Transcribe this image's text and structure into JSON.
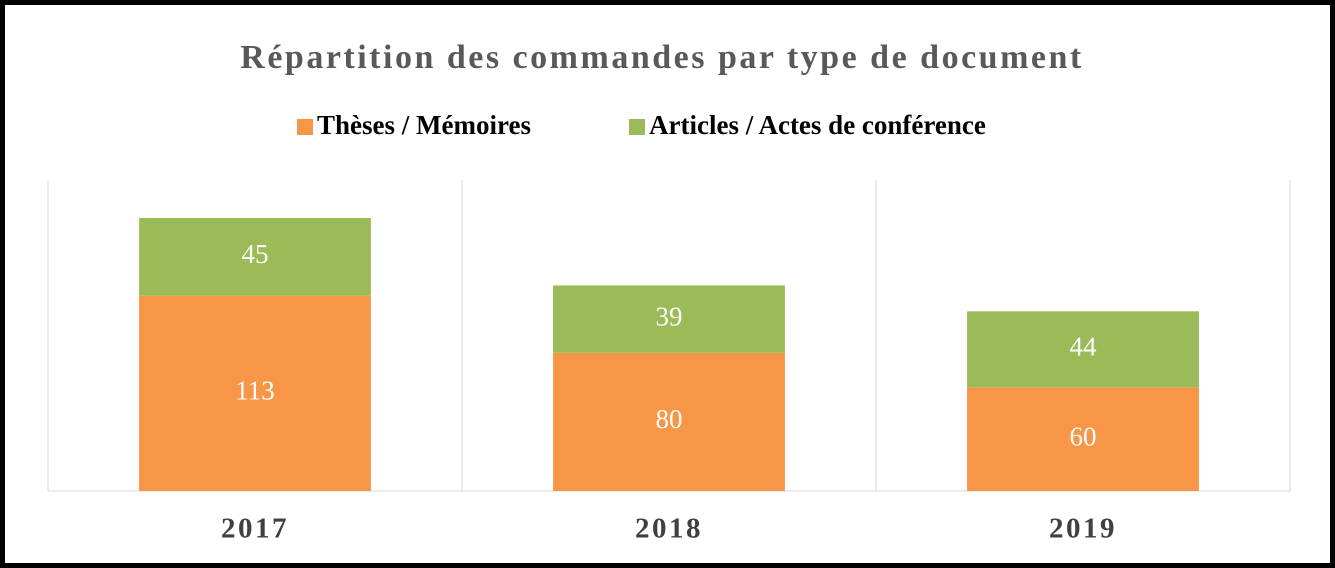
{
  "chart_data": {
    "type": "bar",
    "stacked": true,
    "title": "Répartition des commandes par type de document",
    "categories": [
      "2017",
      "2018",
      "2019"
    ],
    "series": [
      {
        "name": "Thèses / Mémoires",
        "color": "#f79646",
        "values": [
          113,
          80,
          60
        ]
      },
      {
        "name": "Articles / Actes de conférence",
        "color": "#9bbb59",
        "values": [
          45,
          39,
          44
        ]
      }
    ],
    "ylim": [
      0,
      180
    ],
    "legend": "top"
  }
}
